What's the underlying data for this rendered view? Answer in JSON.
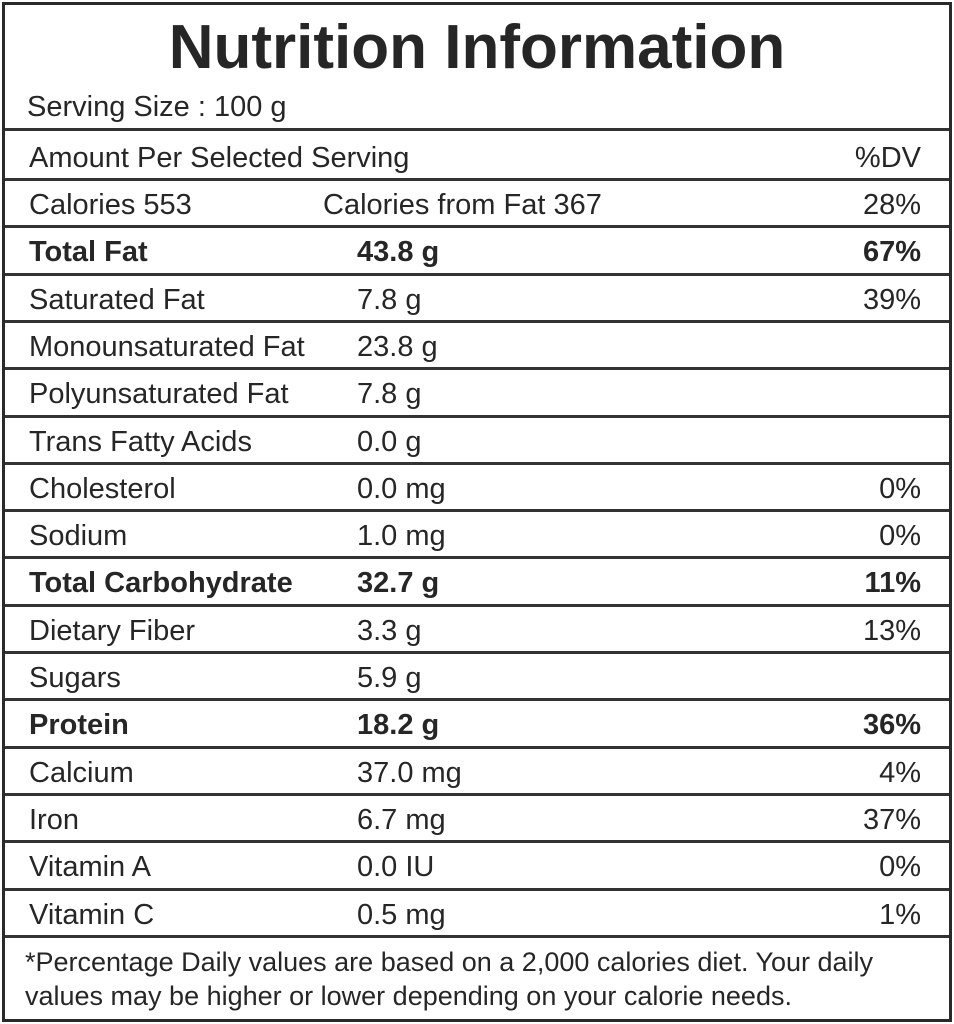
{
  "title": "Nutrition Information",
  "serving_size": "Serving Size : 100 g",
  "header": {
    "amount": "Amount Per Selected Serving",
    "dv": "%DV"
  },
  "calories": {
    "label": "Calories 553",
    "from_fat": "Calories from Fat 367",
    "dv": "28%"
  },
  "rows": [
    {
      "name": "Total Fat",
      "amount": "43.8 g",
      "dv": "67%",
      "bold": true
    },
    {
      "name": "Saturated Fat",
      "amount": "7.8 g",
      "dv": "39%"
    },
    {
      "name": "Monounsaturated Fat",
      "amount": "23.8 g"
    },
    {
      "name": "Polyunsaturated Fat",
      "amount": "7.8 g"
    },
    {
      "name": "Trans Fatty Acids",
      "amount": "0.0 g"
    },
    {
      "name": "Cholesterol",
      "amount": "0.0 mg",
      "dv": "0%"
    },
    {
      "name": "Sodium",
      "amount": "1.0 mg",
      "dv": "0%"
    },
    {
      "name": "Total Carbohydrate",
      "amount": "32.7 g",
      "dv": "11%",
      "bold": true
    },
    {
      "name": "Dietary Fiber",
      "amount": "3.3 g",
      "dv": "13%"
    },
    {
      "name": "Sugars",
      "amount": "5.9 g"
    },
    {
      "name": "Protein",
      "amount": "18.2 g",
      "dv": "36%",
      "bold": true
    },
    {
      "name": "Calcium",
      "amount": "37.0 mg",
      "dv": "4%"
    },
    {
      "name": "Iron",
      "amount": "6.7 mg",
      "dv": "37%"
    },
    {
      "name": "Vitamin A",
      "amount": "0.0 IU",
      "dv": "0%"
    },
    {
      "name": "Vitamin C",
      "amount": "0.5 mg",
      "dv": "1%"
    }
  ],
  "footnote": [
    "*Percentage Daily values are based on a 2,000 calories diet. Your daily",
    "values may be higher or lower depending on your calorie needs."
  ]
}
